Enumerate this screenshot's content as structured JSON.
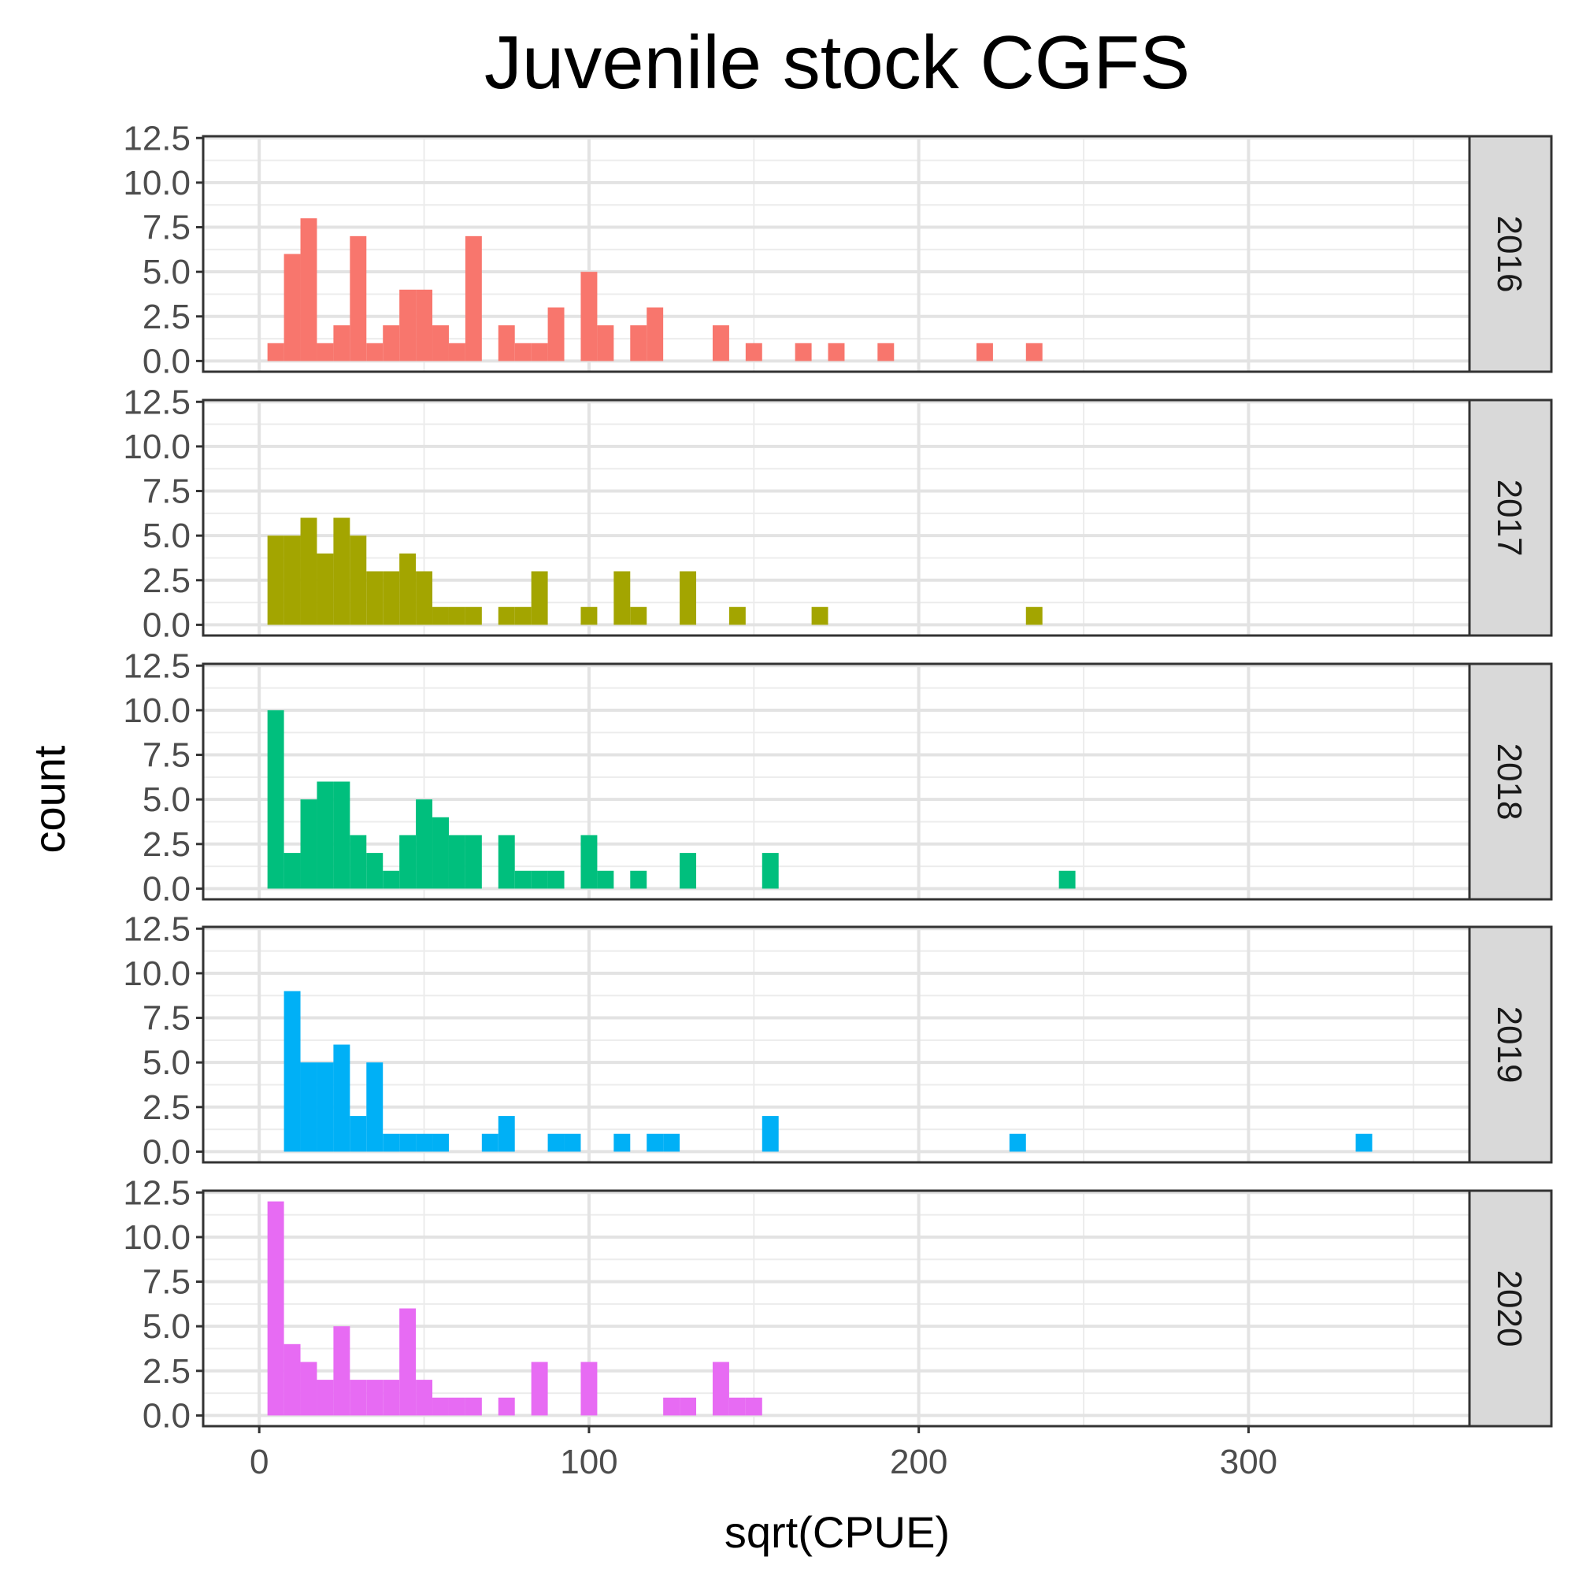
{
  "chart_data": {
    "type": "bar",
    "title": "Juvenile stock CGFS",
    "xlabel": "sqrt(CPUE)",
    "ylabel": "count",
    "xlim": [
      -17,
      367
    ],
    "ylim": [
      -0.6,
      12.6
    ],
    "x_ticks": [
      0,
      100,
      200,
      300
    ],
    "x_tick_labels": [
      "0",
      "100",
      "200",
      "300"
    ],
    "y_ticks": [
      0,
      2.5,
      5,
      7.5,
      10,
      12.5
    ],
    "y_tick_labels": [
      "0.0",
      "2.5",
      "5.0",
      "7.5",
      "10.0",
      "12.5"
    ],
    "bin_width": 5,
    "grid": true,
    "legend": "none",
    "facets": [
      {
        "label": "2016",
        "color": "#F8766D",
        "bins": [
          {
            "x": 5,
            "count": 1
          },
          {
            "x": 10,
            "count": 6
          },
          {
            "x": 15,
            "count": 8
          },
          {
            "x": 20,
            "count": 1
          },
          {
            "x": 25,
            "count": 2
          },
          {
            "x": 30,
            "count": 7
          },
          {
            "x": 35,
            "count": 1
          },
          {
            "x": 40,
            "count": 2
          },
          {
            "x": 45,
            "count": 4
          },
          {
            "x": 50,
            "count": 4
          },
          {
            "x": 55,
            "count": 2
          },
          {
            "x": 60,
            "count": 1
          },
          {
            "x": 65,
            "count": 7
          },
          {
            "x": 75,
            "count": 2
          },
          {
            "x": 80,
            "count": 1
          },
          {
            "x": 85,
            "count": 1
          },
          {
            "x": 90,
            "count": 3
          },
          {
            "x": 100,
            "count": 5
          },
          {
            "x": 105,
            "count": 2
          },
          {
            "x": 115,
            "count": 2
          },
          {
            "x": 120,
            "count": 3
          },
          {
            "x": 140,
            "count": 2
          },
          {
            "x": 150,
            "count": 1
          },
          {
            "x": 165,
            "count": 1
          },
          {
            "x": 175,
            "count": 1
          },
          {
            "x": 190,
            "count": 1
          },
          {
            "x": 220,
            "count": 1
          },
          {
            "x": 235,
            "count": 1
          }
        ]
      },
      {
        "label": "2017",
        "color": "#A3A500",
        "bins": [
          {
            "x": 5,
            "count": 5
          },
          {
            "x": 10,
            "count": 5
          },
          {
            "x": 15,
            "count": 6
          },
          {
            "x": 20,
            "count": 4
          },
          {
            "x": 25,
            "count": 6
          },
          {
            "x": 30,
            "count": 5
          },
          {
            "x": 35,
            "count": 3
          },
          {
            "x": 40,
            "count": 3
          },
          {
            "x": 45,
            "count": 4
          },
          {
            "x": 50,
            "count": 3
          },
          {
            "x": 55,
            "count": 1
          },
          {
            "x": 60,
            "count": 1
          },
          {
            "x": 65,
            "count": 1
          },
          {
            "x": 75,
            "count": 1
          },
          {
            "x": 80,
            "count": 1
          },
          {
            "x": 85,
            "count": 3
          },
          {
            "x": 100,
            "count": 1
          },
          {
            "x": 110,
            "count": 3
          },
          {
            "x": 115,
            "count": 1
          },
          {
            "x": 130,
            "count": 3
          },
          {
            "x": 145,
            "count": 1
          },
          {
            "x": 170,
            "count": 1
          },
          {
            "x": 235,
            "count": 1
          }
        ]
      },
      {
        "label": "2018",
        "color": "#00BF7D",
        "bins": [
          {
            "x": 5,
            "count": 10
          },
          {
            "x": 10,
            "count": 2
          },
          {
            "x": 15,
            "count": 5
          },
          {
            "x": 20,
            "count": 6
          },
          {
            "x": 25,
            "count": 6
          },
          {
            "x": 30,
            "count": 3
          },
          {
            "x": 35,
            "count": 2
          },
          {
            "x": 40,
            "count": 1
          },
          {
            "x": 45,
            "count": 3
          },
          {
            "x": 50,
            "count": 5
          },
          {
            "x": 55,
            "count": 4
          },
          {
            "x": 60,
            "count": 3
          },
          {
            "x": 65,
            "count": 3
          },
          {
            "x": 75,
            "count": 3
          },
          {
            "x": 80,
            "count": 1
          },
          {
            "x": 85,
            "count": 1
          },
          {
            "x": 90,
            "count": 1
          },
          {
            "x": 100,
            "count": 3
          },
          {
            "x": 105,
            "count": 1
          },
          {
            "x": 115,
            "count": 1
          },
          {
            "x": 130,
            "count": 2
          },
          {
            "x": 155,
            "count": 2
          },
          {
            "x": 245,
            "count": 1
          }
        ]
      },
      {
        "label": "2019",
        "color": "#00B0F6",
        "bins": [
          {
            "x": 10,
            "count": 9
          },
          {
            "x": 15,
            "count": 5
          },
          {
            "x": 20,
            "count": 5
          },
          {
            "x": 25,
            "count": 6
          },
          {
            "x": 30,
            "count": 2
          },
          {
            "x": 35,
            "count": 5
          },
          {
            "x": 40,
            "count": 1
          },
          {
            "x": 45,
            "count": 1
          },
          {
            "x": 50,
            "count": 1
          },
          {
            "x": 55,
            "count": 1
          },
          {
            "x": 70,
            "count": 1
          },
          {
            "x": 75,
            "count": 2
          },
          {
            "x": 90,
            "count": 1
          },
          {
            "x": 95,
            "count": 1
          },
          {
            "x": 110,
            "count": 1
          },
          {
            "x": 120,
            "count": 1
          },
          {
            "x": 125,
            "count": 1
          },
          {
            "x": 155,
            "count": 2
          },
          {
            "x": 230,
            "count": 1
          },
          {
            "x": 335,
            "count": 1
          }
        ]
      },
      {
        "label": "2020",
        "color": "#E76BF3",
        "bins": [
          {
            "x": 5,
            "count": 12
          },
          {
            "x": 10,
            "count": 4
          },
          {
            "x": 15,
            "count": 3
          },
          {
            "x": 20,
            "count": 2
          },
          {
            "x": 25,
            "count": 5
          },
          {
            "x": 30,
            "count": 2
          },
          {
            "x": 35,
            "count": 2
          },
          {
            "x": 40,
            "count": 2
          },
          {
            "x": 45,
            "count": 6
          },
          {
            "x": 50,
            "count": 2
          },
          {
            "x": 55,
            "count": 1
          },
          {
            "x": 60,
            "count": 1
          },
          {
            "x": 65,
            "count": 1
          },
          {
            "x": 75,
            "count": 1
          },
          {
            "x": 85,
            "count": 3
          },
          {
            "x": 100,
            "count": 3
          },
          {
            "x": 125,
            "count": 1
          },
          {
            "x": 130,
            "count": 1
          },
          {
            "x": 140,
            "count": 3
          },
          {
            "x": 145,
            "count": 1
          },
          {
            "x": 150,
            "count": 1
          }
        ]
      }
    ]
  }
}
